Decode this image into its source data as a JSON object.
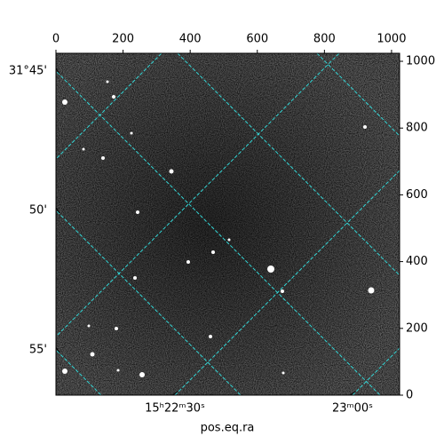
{
  "chart_data": {
    "type": "image",
    "xlabel": "pos.eq.ra",
    "xlim": [
      0,
      1024
    ],
    "xticks": [
      0,
      200,
      400,
      600,
      800,
      1000
    ],
    "ylim": [
      0,
      1024
    ],
    "yticks": [
      0,
      200,
      400,
      600,
      800,
      1000
    ],
    "dec_ticks": [
      {
        "value": 31.75,
        "label": "31°45'"
      },
      {
        "value": 31.8333,
        "label": "50'"
      },
      {
        "value": 31.9167,
        "label": "55'"
      }
    ],
    "ra_ticks": [
      {
        "value": 230.625,
        "label": "15ʰ22ᵐ30ˢ"
      },
      {
        "value": 230.75,
        "label": "23ᵐ00ˢ"
      }
    ],
    "grid_color": "#33d6d6"
  }
}
